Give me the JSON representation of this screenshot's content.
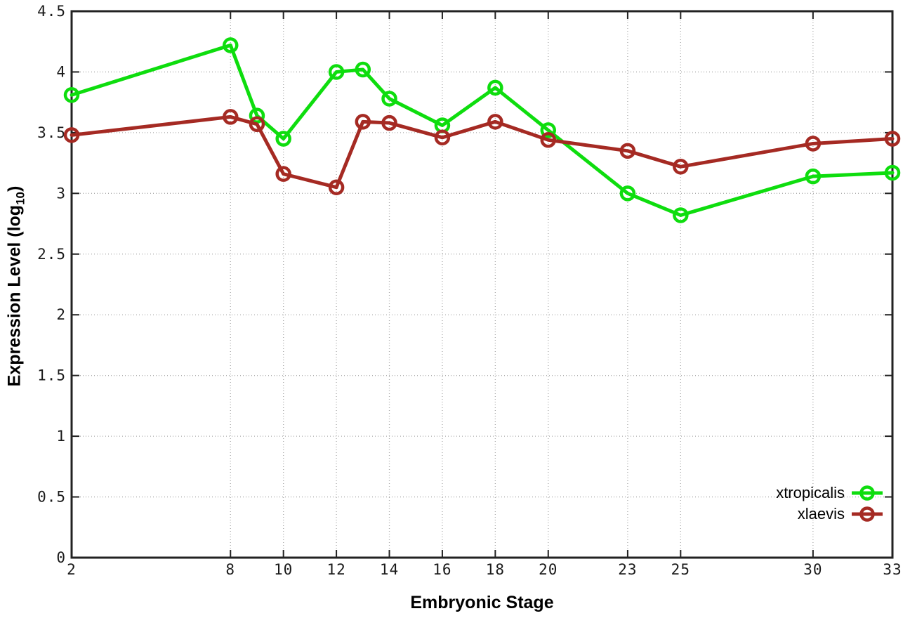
{
  "chart_data": {
    "type": "line",
    "title": "",
    "xlabel": "Embryonic Stage",
    "ylabel": "Expression Level (log10)",
    "ylabel_parts": {
      "main": "Expression Level (log",
      "sub": "10",
      "close": ")"
    },
    "xlim": [
      2,
      33
    ],
    "ylim": [
      0,
      4.5
    ],
    "x_ticks": [
      2,
      8,
      10,
      12,
      14,
      16,
      18,
      20,
      23,
      25,
      30,
      33
    ],
    "y_ticks": [
      0,
      0.5,
      1,
      1.5,
      2,
      2.5,
      3,
      3.5,
      4,
      4.5
    ],
    "grid": true,
    "legend_position": "bottom-right",
    "marker": "open-circle",
    "x": [
      2,
      8,
      9,
      10,
      12,
      13,
      14,
      16,
      18,
      20,
      23,
      25,
      30,
      33
    ],
    "series": [
      {
        "name": "xtropicalis",
        "color": "#0edd0e",
        "values": [
          3.81,
          4.22,
          3.64,
          3.45,
          4.0,
          4.02,
          3.78,
          3.56,
          3.87,
          3.52,
          3.0,
          2.82,
          3.14,
          3.17
        ]
      },
      {
        "name": "xlaevis",
        "color": "#a52a23",
        "values": [
          3.48,
          3.63,
          3.57,
          3.16,
          3.05,
          3.59,
          3.58,
          3.46,
          3.59,
          3.44,
          3.35,
          3.22,
          3.41,
          3.45
        ]
      }
    ],
    "colors": {
      "background": "#ffffff",
      "axis": "#222222",
      "grid": "#ababab",
      "tick_text": "#1a1a1a"
    }
  }
}
